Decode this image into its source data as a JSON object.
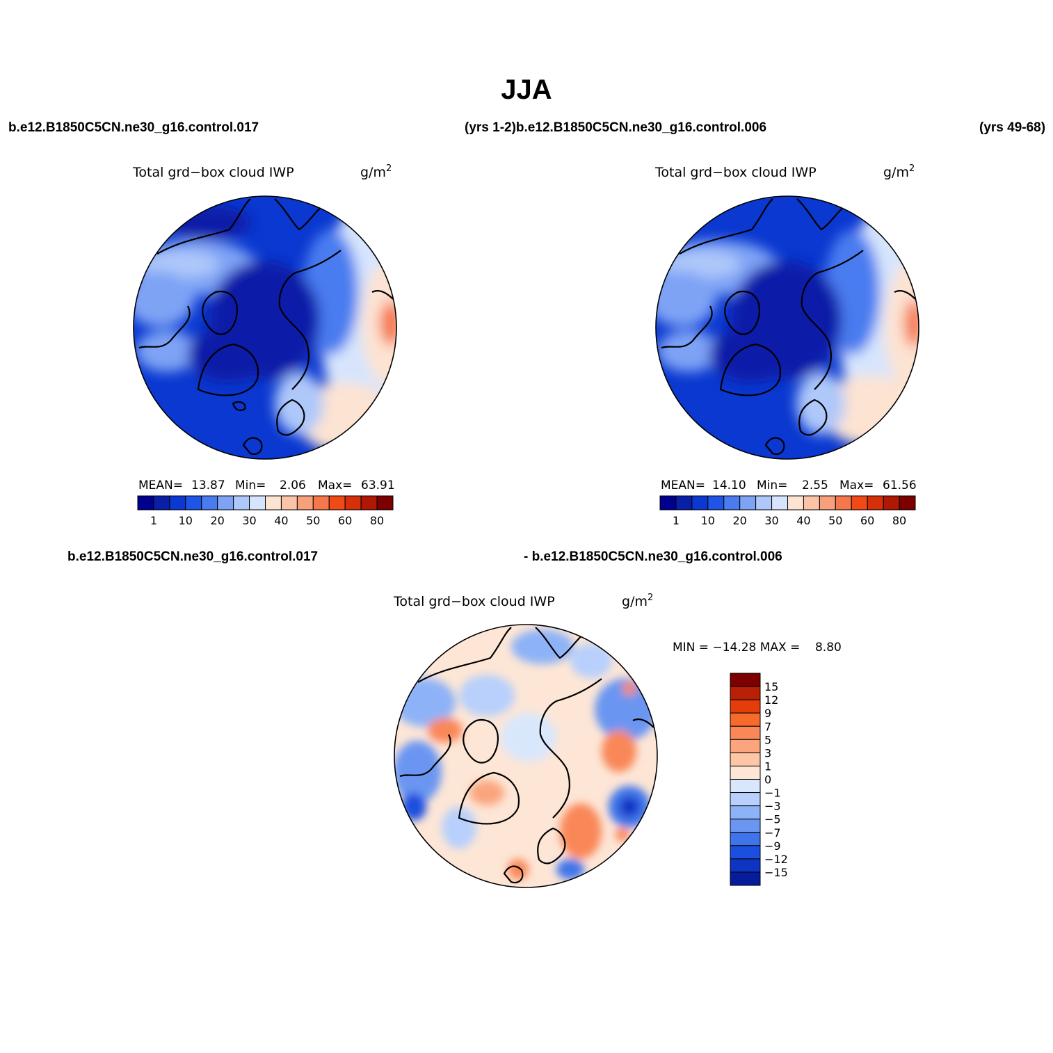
{
  "figure": {
    "title": "JJA",
    "top_left_case": "b.e12.B1850C5CN.ne30_g16.control.017",
    "top_mid_label": "(yrs 1-2)b.e12.B1850C5CN.ne30_g16.control.006",
    "top_right_label": "(yrs 49-68)",
    "bottom_left_case": "b.e12.B1850C5CN.ne30_g16.control.017",
    "bottom_mid_case": "- b.e12.B1850C5CN.ne30_g16.control.006"
  },
  "panels": [
    {
      "variable": "Total grd−box cloud IWP",
      "units": "g/m",
      "units_exp": "2",
      "stats": {
        "mean_label": "MEAN=",
        "mean": "13.87",
        "min_label": "Min=",
        "min": "2.06",
        "max_label": "Max=",
        "max": "63.91"
      }
    },
    {
      "variable": "Total grd−box cloud IWP",
      "units": "g/m",
      "units_exp": "2",
      "stats": {
        "mean_label": "MEAN=",
        "mean": "14.10",
        "min_label": "Min=",
        "min": "2.55",
        "max_label": "Max=",
        "max": "61.56"
      }
    },
    {
      "variable": "Total grd−box cloud IWP",
      "units": "g/m",
      "units_exp": "2",
      "stats_text": "MIN = −14.28 MAX =    8.80"
    }
  ],
  "colorbar_abs": {
    "colors": [
      "#00008f",
      "#0a1fa8",
      "#0a38d0",
      "#1f55e6",
      "#4a7cf0",
      "#7ea3f5",
      "#aec8fa",
      "#d6e5fd",
      "#fde3d2",
      "#fbc4a8",
      "#f6a07c",
      "#f5774c",
      "#f04a17",
      "#d6300a",
      "#b01804",
      "#7d0000"
    ],
    "labels": [
      "1",
      "10",
      "20",
      "30",
      "40",
      "50",
      "60",
      "80"
    ]
  },
  "colorbar_diff": {
    "colors": [
      "#7d0000",
      "#b82105",
      "#e33d0a",
      "#f66a2b",
      "#f98758",
      "#faa57d",
      "#fcc6a7",
      "#fde6d6",
      "#d9e7fd",
      "#b8d0fb",
      "#8eb2f7",
      "#6a96f2",
      "#3f74ea",
      "#1b4fdf",
      "#0d34c2",
      "#071c9a"
    ],
    "labels": [
      "15",
      "12",
      "9",
      "7",
      "5",
      "3",
      "1",
      "0",
      "−1",
      "−3",
      "−5",
      "−7",
      "−9",
      "−12",
      "−15"
    ]
  }
}
